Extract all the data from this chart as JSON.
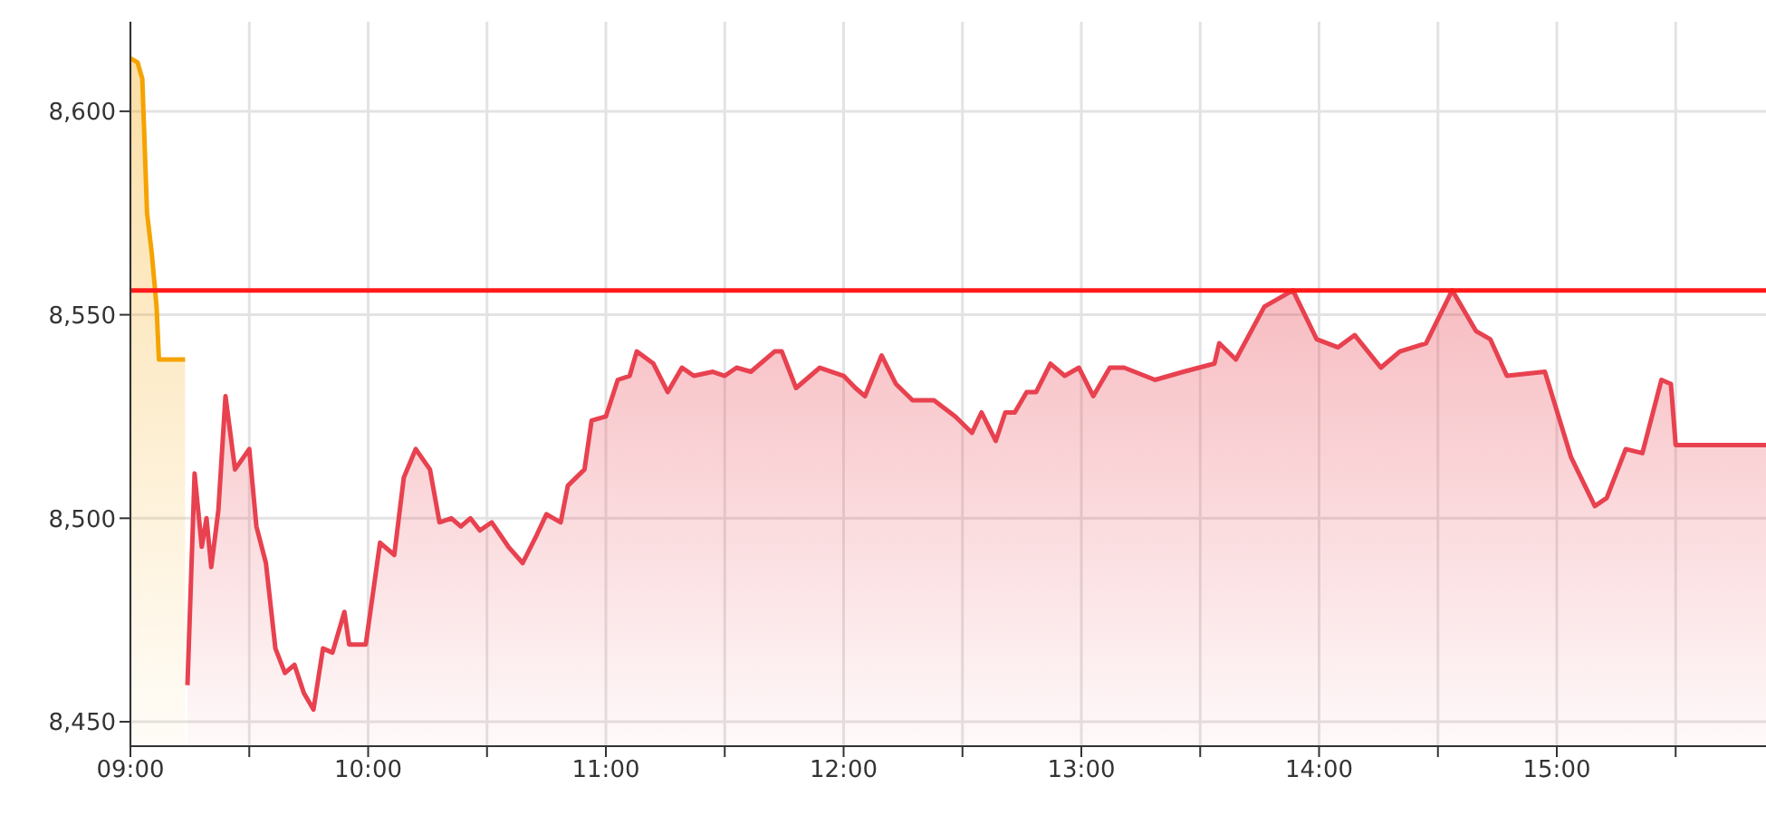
{
  "chart_data": {
    "type": "area",
    "xlim": [
      9,
      15.88
    ],
    "xticks": [
      {
        "value": 9,
        "label": "09:00"
      },
      {
        "value": 9.5,
        "label": null
      },
      {
        "value": 10,
        "label": "10:00"
      },
      {
        "value": 10.5,
        "label": null
      },
      {
        "value": 11,
        "label": "11:00"
      },
      {
        "value": 11.5,
        "label": null
      },
      {
        "value": 12,
        "label": "12:00"
      },
      {
        "value": 12.5,
        "label": null
      },
      {
        "value": 13,
        "label": "13:00"
      },
      {
        "value": 13.5,
        "label": null
      },
      {
        "value": 14,
        "label": "14:00"
      },
      {
        "value": 14.5,
        "label": null
      },
      {
        "value": 15,
        "label": "15:00"
      },
      {
        "value": 15.5,
        "label": null
      }
    ],
    "ylim": [
      8444,
      8622
    ],
    "yticks": [
      {
        "value": 8450,
        "label": "8,450"
      },
      {
        "value": 8500,
        "label": "8,500"
      },
      {
        "value": 8550,
        "label": "8,550"
      },
      {
        "value": 8600,
        "label": "8,600"
      }
    ],
    "grid": true,
    "ref_lines": [
      {
        "axis": "y",
        "value": 8556,
        "color": "#ff1a1a"
      }
    ],
    "series": [
      {
        "color": "#f5a300",
        "x": [
          9.0,
          9.03,
          9.05,
          9.07,
          9.09,
          9.11,
          9.12,
          9.23
        ],
        "values": [
          8613,
          8612,
          8608,
          8575,
          8565,
          8552,
          8539,
          8539
        ]
      },
      {
        "color": "#e8414f",
        "x": [
          9.24,
          9.27,
          9.3,
          9.32,
          9.34,
          9.37,
          9.4,
          9.44,
          9.5,
          9.53,
          9.57,
          9.61,
          9.65,
          9.69,
          9.73,
          9.77,
          9.81,
          9.85,
          9.9,
          9.92,
          9.99,
          10.05,
          10.11,
          10.15,
          10.2,
          10.26,
          10.3,
          10.35,
          10.39,
          10.43,
          10.47,
          10.52,
          10.59,
          10.65,
          10.71,
          10.75,
          10.81,
          10.84,
          10.91,
          10.94,
          11.0,
          11.05,
          11.1,
          11.13,
          11.2,
          11.26,
          11.32,
          11.37,
          11.45,
          11.5,
          11.55,
          11.61,
          11.71,
          11.74,
          11.8,
          11.9,
          12.0,
          12.05,
          12.09,
          12.16,
          12.22,
          12.29,
          12.38,
          12.47,
          12.54,
          12.58,
          12.64,
          12.68,
          12.72,
          12.77,
          12.81,
          12.87,
          12.93,
          12.99,
          13.05,
          13.12,
          13.18,
          13.31,
          13.43,
          13.56,
          13.58,
          13.65,
          13.77,
          13.89,
          13.99,
          14.08,
          14.15,
          14.26,
          14.34,
          14.45,
          14.56,
          14.66,
          14.72,
          14.79,
          14.95,
          15.06,
          15.16,
          15.21,
          15.29,
          15.36,
          15.44,
          15.48,
          15.5,
          15.88
        ],
        "values": [
          8459,
          8511,
          8493,
          8500,
          8488,
          8502,
          8530,
          8512,
          8517,
          8498,
          8489,
          8468,
          8462,
          8464,
          8457,
          8453,
          8468,
          8467,
          8477,
          8469,
          8469,
          8494,
          8491,
          8510,
          8517,
          8512,
          8499,
          8500,
          8498,
          8500,
          8497,
          8499,
          8493,
          8489,
          8496,
          8501,
          8499,
          8508,
          8512,
          8524,
          8525,
          8534,
          8535,
          8541,
          8538,
          8531,
          8537,
          8535,
          8536,
          8535,
          8537,
          8536,
          8541,
          8541,
          8532,
          8537,
          8535,
          8532,
          8530,
          8540,
          8533,
          8529,
          8529,
          8525,
          8521,
          8526,
          8519,
          8526,
          8526,
          8531,
          8531,
          8538,
          8535,
          8537,
          8530,
          8537,
          8537,
          8534,
          8536,
          8538,
          8543,
          8539,
          8552,
          8556,
          8544,
          8542,
          8545,
          8537,
          8541,
          8543,
          8556,
          8546,
          8544,
          8535,
          8536,
          8515,
          8503,
          8505,
          8517,
          8516,
          8534,
          8533,
          8518,
          8518
        ]
      }
    ]
  }
}
